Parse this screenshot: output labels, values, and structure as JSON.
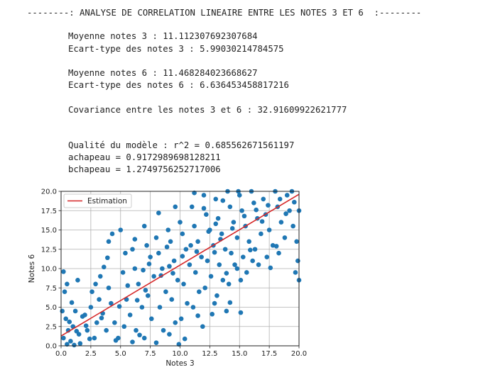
{
  "output": {
    "header": "--------: ANALYSE DE CORRELATION LINEAIRE ENTRE LES NOTES 3 ET 6  :--------",
    "mean3": "Moyenne notes 3 : 11.112307692307684",
    "std3": "Ecart-type des notes 3 : 5.99030214784575",
    "mean6": "Moyenne notes 6 : 11.468284023668627",
    "std6": "Ecart-type des notes 6 : 6.636453458817216",
    "cov": "Covariance entre les notes 3 et 6 : 32.91609922621777",
    "r2": "Qualité du modèle : r^2 = 0.685562671561197",
    "a": "achapeau = 0.9172989698128211",
    "b": "bchapeau = 1.2749756252717006"
  },
  "chart_data": {
    "type": "scatter",
    "xlabel": "Notes 3",
    "ylabel": "Notes 6",
    "xlim": [
      0,
      20
    ],
    "ylim": [
      0,
      20
    ],
    "xticks": [
      "0.0",
      "2.5",
      "5.0",
      "7.5",
      "10.0",
      "12.5",
      "15.0",
      "17.5",
      "20.0"
    ],
    "yticks": [
      "0.0",
      "2.5",
      "5.0",
      "7.5",
      "10.0",
      "12.5",
      "15.0",
      "17.5",
      "20.0"
    ],
    "grid": true,
    "legend": {
      "placement": "top-left",
      "entries": [
        "Estimation"
      ]
    },
    "line": {
      "name": "Estimation",
      "x": [
        0,
        20
      ],
      "y": [
        1.2749756252717006,
        19.62095502152813
      ],
      "color": "#d62728"
    },
    "point_color": "#1f77b4",
    "points": [
      [
        0.2,
        9.6
      ],
      [
        0.5,
        8.0
      ],
      [
        0.3,
        7.0
      ],
      [
        0.1,
        4.5
      ],
      [
        0.4,
        3.5
      ],
      [
        0.6,
        2.0
      ],
      [
        0.2,
        1.0
      ],
      [
        0.8,
        0.6
      ],
      [
        0.5,
        0.2
      ],
      [
        1.0,
        2.5
      ],
      [
        1.2,
        4.5
      ],
      [
        1.5,
        1.5
      ],
      [
        1.8,
        3.8
      ],
      [
        0.9,
        5.6
      ],
      [
        2.0,
        4.0
      ],
      [
        2.2,
        2.0
      ],
      [
        1.6,
        0.3
      ],
      [
        2.5,
        5.0
      ],
      [
        2.8,
        1.0
      ],
      [
        3.0,
        3.0
      ],
      [
        2.6,
        7.0
      ],
      [
        1.4,
        8.5
      ],
      [
        3.2,
        6.0
      ],
      [
        3.5,
        4.2
      ],
      [
        3.8,
        2.0
      ],
      [
        3.3,
        9.0
      ],
      [
        4.0,
        7.5
      ],
      [
        4.2,
        5.5
      ],
      [
        4.5,
        3.0
      ],
      [
        4.8,
        1.0
      ],
      [
        4.0,
        13.5
      ],
      [
        4.3,
        14.5
      ],
      [
        5.0,
        15.0
      ],
      [
        5.2,
        9.5
      ],
      [
        5.5,
        6.0
      ],
      [
        5.8,
        4.0
      ],
      [
        5.3,
        2.5
      ],
      [
        6.0,
        12.5
      ],
      [
        6.2,
        10.0
      ],
      [
        6.5,
        8.0
      ],
      [
        6.8,
        5.0
      ],
      [
        6.3,
        2.0
      ],
      [
        6.0,
        0.5
      ],
      [
        7.0,
        15.5
      ],
      [
        7.2,
        13.0
      ],
      [
        7.5,
        11.5
      ],
      [
        7.8,
        9.0
      ],
      [
        7.3,
        6.5
      ],
      [
        7.6,
        3.5
      ],
      [
        7.0,
        1.0
      ],
      [
        8.0,
        14.0
      ],
      [
        8.2,
        12.0
      ],
      [
        8.5,
        10.0
      ],
      [
        8.8,
        7.0
      ],
      [
        8.3,
        5.0
      ],
      [
        8.6,
        2.0
      ],
      [
        8.0,
        0.4
      ],
      [
        9.0,
        15.0
      ],
      [
        9.2,
        13.5
      ],
      [
        9.5,
        11.0
      ],
      [
        9.8,
        8.5
      ],
      [
        9.3,
        6.0
      ],
      [
        9.6,
        3.0
      ],
      [
        9.1,
        1.5
      ],
      [
        9.9,
        0.2
      ],
      [
        10.0,
        16.0
      ],
      [
        10.2,
        14.5
      ],
      [
        10.5,
        12.5
      ],
      [
        10.8,
        10.5
      ],
      [
        10.3,
        8.0
      ],
      [
        10.6,
        5.5
      ],
      [
        10.1,
        3.5
      ],
      [
        11.0,
        18.0
      ],
      [
        11.2,
        15.5
      ],
      [
        11.5,
        13.5
      ],
      [
        11.8,
        11.5
      ],
      [
        11.3,
        9.5
      ],
      [
        11.6,
        7.0
      ],
      [
        11.1,
        5.0
      ],
      [
        11.9,
        2.5
      ],
      [
        12.0,
        19.5
      ],
      [
        12.2,
        17.0
      ],
      [
        12.5,
        15.0
      ],
      [
        12.8,
        13.0
      ],
      [
        12.3,
        11.0
      ],
      [
        12.6,
        9.0
      ],
      [
        12.1,
        7.5
      ],
      [
        12.9,
        5.5
      ],
      [
        13.0,
        19.0
      ],
      [
        13.2,
        16.5
      ],
      [
        13.5,
        14.5
      ],
      [
        13.8,
        12.5
      ],
      [
        13.3,
        10.5
      ],
      [
        13.6,
        8.5
      ],
      [
        13.1,
        6.5
      ],
      [
        13.9,
        4.5
      ],
      [
        14.0,
        20.0
      ],
      [
        14.2,
        18.0
      ],
      [
        14.5,
        16.0
      ],
      [
        14.8,
        14.0
      ],
      [
        14.3,
        12.0
      ],
      [
        14.6,
        10.5
      ],
      [
        14.1,
        8.0
      ],
      [
        15.0,
        19.5
      ],
      [
        15.2,
        17.5
      ],
      [
        15.5,
        15.5
      ],
      [
        15.8,
        13.5
      ],
      [
        15.3,
        11.5
      ],
      [
        15.6,
        9.5
      ],
      [
        15.1,
        8.5
      ],
      [
        16.0,
        20.0
      ],
      [
        16.2,
        18.5
      ],
      [
        16.5,
        16.5
      ],
      [
        16.8,
        14.5
      ],
      [
        16.3,
        12.5
      ],
      [
        16.6,
        10.5
      ],
      [
        17.0,
        19.0
      ],
      [
        17.2,
        17.0
      ],
      [
        17.5,
        15.0
      ],
      [
        17.8,
        13.0
      ],
      [
        17.3,
        11.5
      ],
      [
        18.0,
        20.0
      ],
      [
        18.2,
        18.0
      ],
      [
        18.5,
        16.0
      ],
      [
        18.8,
        14.0
      ],
      [
        18.3,
        12.0
      ],
      [
        19.0,
        19.5
      ],
      [
        19.2,
        17.5
      ],
      [
        19.5,
        15.5
      ],
      [
        19.8,
        13.5
      ],
      [
        19.9,
        11.0
      ],
      [
        19.7,
        9.5
      ],
      [
        20.0,
        8.5
      ],
      [
        20.0,
        17.5
      ],
      [
        19.4,
        20.0
      ],
      [
        3.6,
        10.2
      ],
      [
        2.9,
        8.0
      ],
      [
        6.9,
        9.8
      ],
      [
        8.9,
        12.8
      ],
      [
        10.9,
        13.0
      ],
      [
        12.4,
        14.8
      ],
      [
        14.4,
        15.2
      ],
      [
        16.4,
        17.6
      ],
      [
        18.4,
        19.0
      ],
      [
        5.6,
        7.8
      ],
      [
        7.4,
        10.6
      ],
      [
        9.4,
        9.4
      ],
      [
        11.4,
        12.2
      ],
      [
        13.4,
        13.8
      ],
      [
        15.4,
        16.8
      ],
      [
        17.4,
        18.2
      ],
      [
        1.1,
        0.1
      ],
      [
        2.4,
        0.9
      ],
      [
        4.6,
        0.7
      ],
      [
        6.6,
        1.4
      ],
      [
        10.4,
        0.9
      ],
      [
        11.5,
        3.9
      ],
      [
        12.7,
        4.1
      ],
      [
        14.2,
        5.6
      ],
      [
        15.1,
        4.3
      ],
      [
        12.0,
        17.8
      ],
      [
        11.2,
        19.8
      ],
      [
        13.6,
        18.8
      ],
      [
        9.6,
        18.0
      ],
      [
        8.2,
        17.2
      ],
      [
        6.2,
        13.8
      ],
      [
        5.4,
        12.0
      ],
      [
        3.9,
        11.4
      ],
      [
        14.9,
        20.0
      ],
      [
        16.9,
        16.1
      ],
      [
        18.9,
        17.1
      ],
      [
        19.6,
        18.6
      ],
      [
        13.0,
        15.8
      ],
      [
        12.9,
        12.1
      ],
      [
        10.2,
        11.6
      ],
      [
        9.1,
        10.3
      ],
      [
        8.4,
        9.1
      ],
      [
        7.1,
        7.2
      ],
      [
        6.4,
        5.9
      ],
      [
        4.9,
        5.1
      ],
      [
        3.4,
        3.6
      ],
      [
        2.1,
        2.6
      ],
      [
        1.3,
        1.9
      ],
      [
        0.7,
        3.1
      ],
      [
        15.9,
        12.4
      ],
      [
        16.1,
        11.0
      ],
      [
        17.6,
        10.1
      ],
      [
        18.1,
        12.9
      ],
      [
        14.8,
        10.0
      ],
      [
        13.9,
        9.4
      ]
    ]
  }
}
